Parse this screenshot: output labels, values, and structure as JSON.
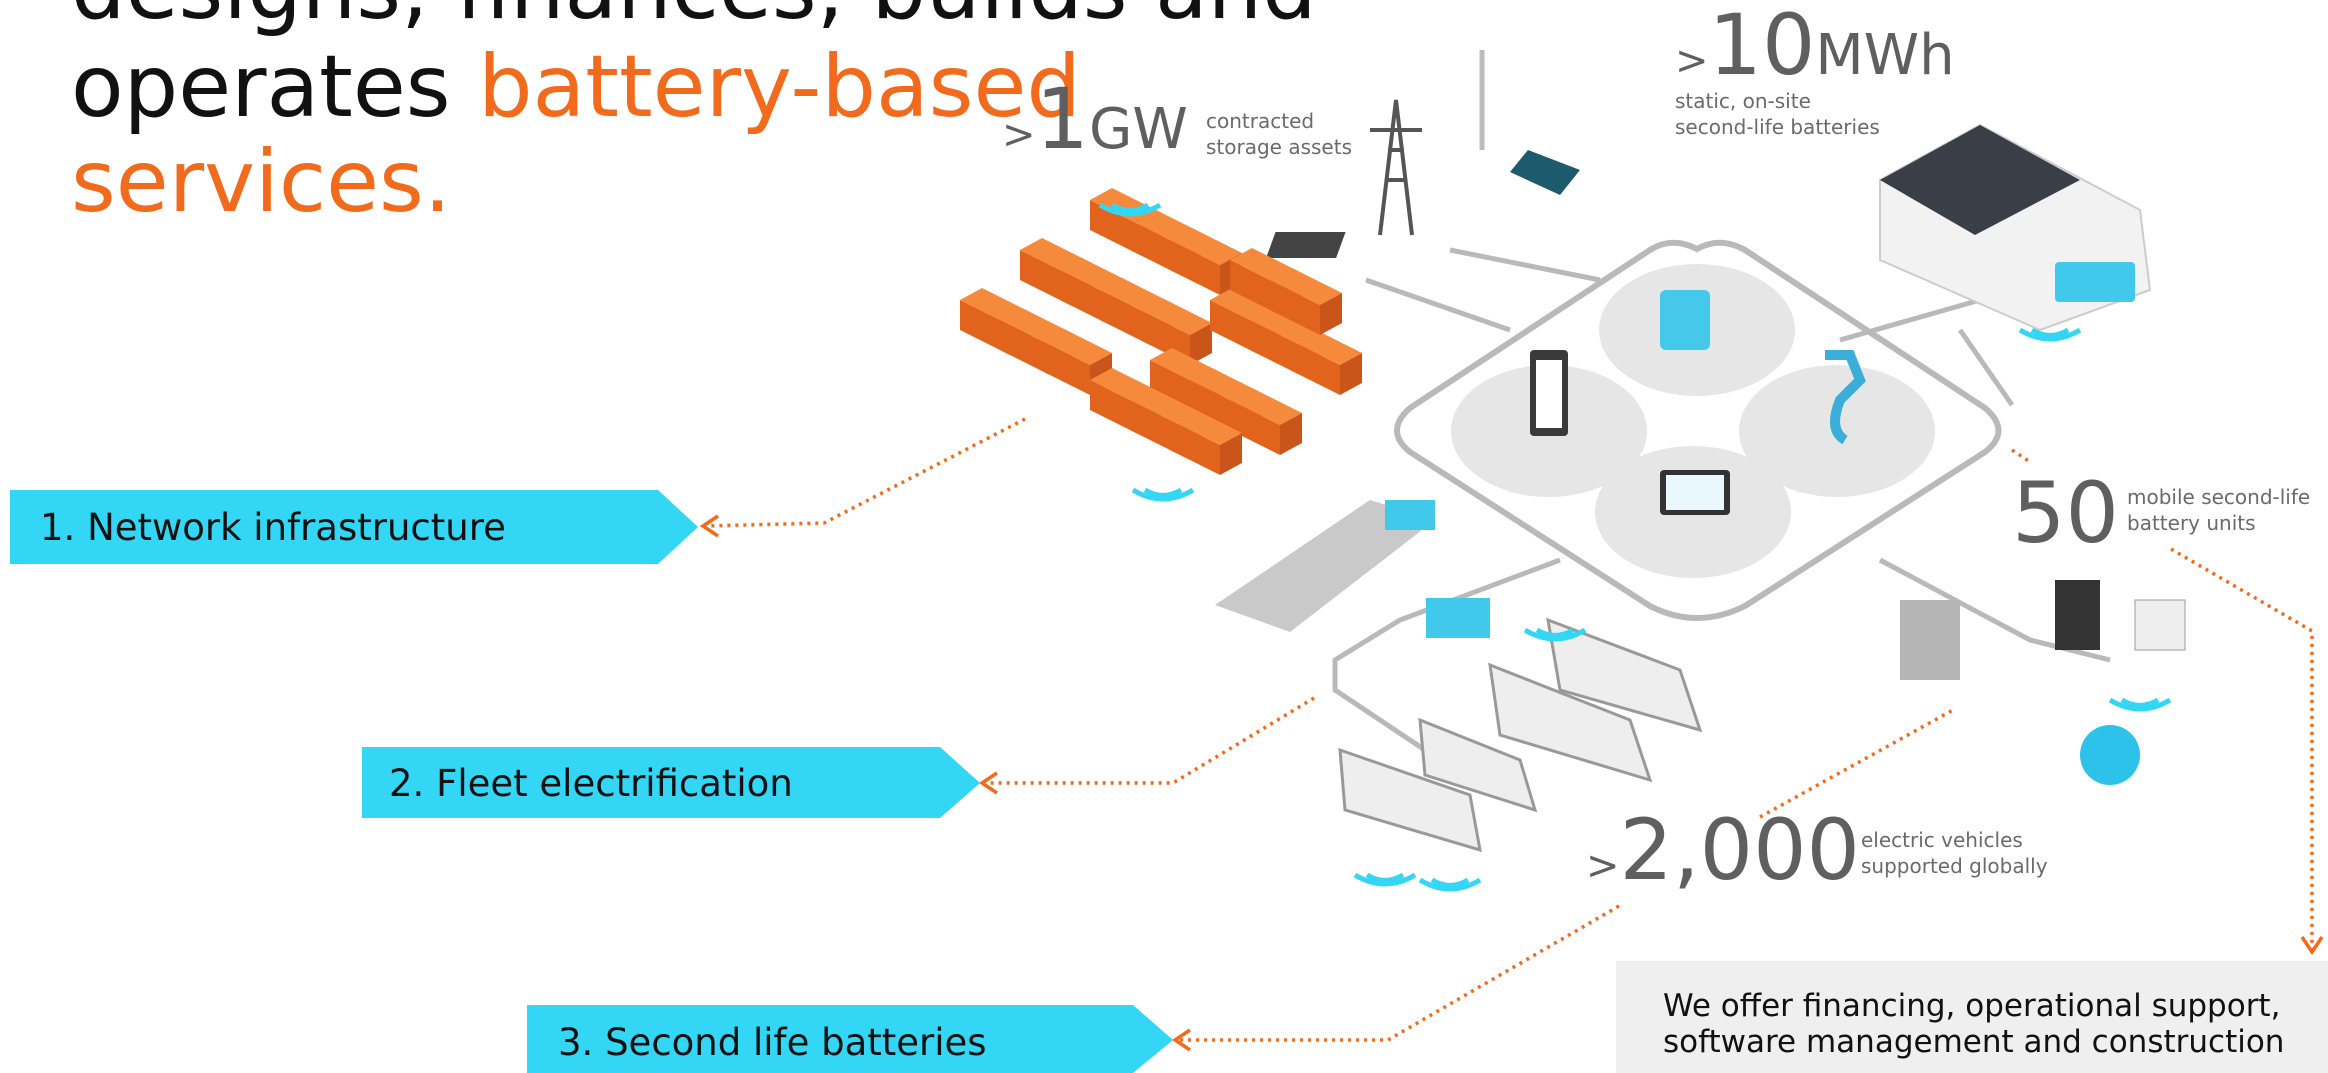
{
  "heading": {
    "line1": "designs, finances, builds and",
    "line2_plain": "operates ",
    "line2_highlight": "battery-based",
    "line3_highlight": "services."
  },
  "stats": [
    {
      "prefix": ">",
      "number": "1",
      "unit": "GW",
      "description": [
        "contracted",
        "storage assets"
      ]
    },
    {
      "prefix": ">",
      "number": "10",
      "unit": "MWh",
      "description": [
        "static, on-site",
        "second-life batteries"
      ]
    },
    {
      "number": "50",
      "description": [
        "mobile second-life",
        "battery units"
      ]
    },
    {
      "prefix": ">",
      "number": "2,000",
      "description": [
        "electric vehicles",
        "supported globally"
      ]
    }
  ],
  "segments": [
    "1. Network infrastructure",
    "2. Fleet electrification",
    "3. Second life batteries"
  ],
  "callout": [
    "We offer financing, operational support,",
    "software management and construction"
  ]
}
